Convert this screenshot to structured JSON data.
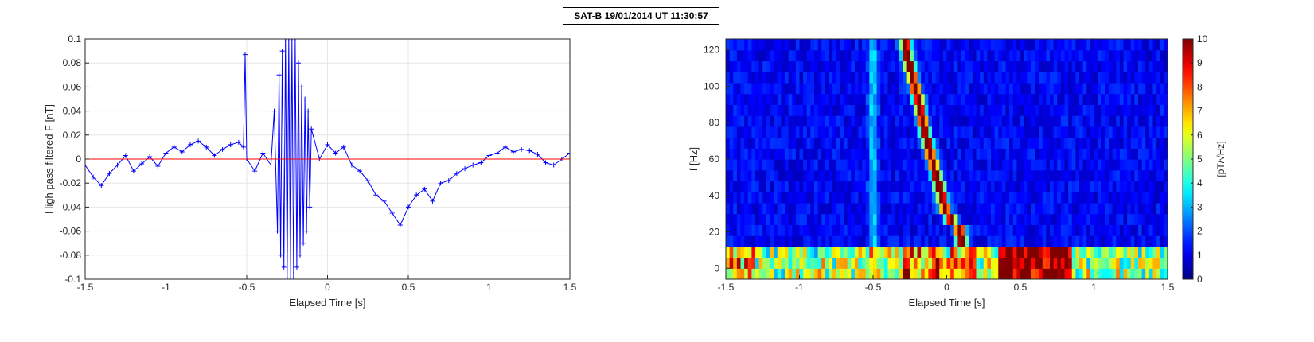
{
  "figure": {
    "title": "SAT-B 19/01/2014 UT 11:30:57"
  },
  "colors": {
    "series": "#0000ff",
    "reference": "#ff0000",
    "grid": "#e6e6e6",
    "axes": "#262626"
  },
  "chart_data": [
    {
      "type": "line",
      "xlabel": "Elapsed Time [s]",
      "ylabel": "High pass filtered F [nT]",
      "xlim": [
        -1.5,
        1.5
      ],
      "ylim": [
        -0.1,
        0.1
      ],
      "grid": true,
      "xticks": [
        -1.5,
        -1,
        -0.5,
        0,
        0.5,
        1,
        1.5
      ],
      "xtick_labels": [
        "-1.5",
        "-1",
        "-0.5",
        "0",
        "0.5",
        "1",
        "1.5"
      ],
      "yticks": [
        -0.1,
        -0.08,
        -0.06,
        -0.04,
        -0.02,
        0,
        0.02,
        0.04,
        0.06,
        0.08,
        0.1
      ],
      "ytick_labels": [
        "-0.1",
        "-0.08",
        "-0.06",
        "-0.04",
        "-0.02",
        "0",
        "0.02",
        "0.04",
        "0.06",
        "0.08",
        "0.1"
      ],
      "marker": "+",
      "series": [
        {
          "color": "#0000ff",
          "x": [
            -1.5,
            -1.45,
            -1.4,
            -1.35,
            -1.3,
            -1.25,
            -1.2,
            -1.15,
            -1.1,
            -1.05,
            -1.0,
            -0.95,
            -0.9,
            -0.85,
            -0.8,
            -0.75,
            -0.7,
            -0.65,
            -0.6,
            -0.55,
            -0.52,
            -0.51,
            -0.5,
            -0.45,
            -0.4,
            -0.35,
            -0.33,
            -0.31,
            -0.3,
            -0.29,
            -0.28,
            -0.27,
            -0.26,
            -0.25,
            -0.24,
            -0.23,
            -0.22,
            -0.21,
            -0.2,
            -0.19,
            -0.18,
            -0.17,
            -0.16,
            -0.15,
            -0.14,
            -0.13,
            -0.12,
            -0.11,
            -0.1,
            -0.05,
            0.0,
            0.05,
            0.1,
            0.15,
            0.2,
            0.25,
            0.3,
            0.35,
            0.4,
            0.45,
            0.5,
            0.55,
            0.6,
            0.65,
            0.7,
            0.75,
            0.8,
            0.85,
            0.9,
            0.95,
            1.0,
            1.05,
            1.1,
            1.15,
            1.2,
            1.25,
            1.3,
            1.35,
            1.4,
            1.45,
            1.5
          ],
          "y": [
            -0.005,
            -0.015,
            -0.022,
            -0.012,
            -0.005,
            0.003,
            -0.01,
            -0.004,
            0.002,
            -0.006,
            0.005,
            0.01,
            0.006,
            0.012,
            0.015,
            0.01,
            0.003,
            0.008,
            0.012,
            0.014,
            0.01,
            0.087,
            0.0,
            -0.01,
            0.005,
            -0.005,
            0.04,
            -0.06,
            0.07,
            -0.08,
            0.09,
            -0.09,
            0.1,
            -0.1,
            0.1,
            -0.1,
            0.1,
            -0.1,
            0.1,
            -0.09,
            0.08,
            -0.08,
            0.06,
            -0.07,
            0.05,
            -0.06,
            0.04,
            -0.04,
            0.025,
            0.0,
            0.012,
            0.005,
            0.01,
            -0.005,
            -0.01,
            -0.018,
            -0.03,
            -0.035,
            -0.045,
            -0.055,
            -0.04,
            -0.03,
            -0.025,
            -0.035,
            -0.02,
            -0.018,
            -0.012,
            -0.008,
            -0.005,
            -0.003,
            0.003,
            0.005,
            0.01,
            0.006,
            0.008,
            0.007,
            0.004,
            -0.003,
            -0.005,
            0.0,
            0.005
          ]
        },
        {
          "color": "#ff0000",
          "x": [
            -1.5,
            1.5
          ],
          "y": [
            0.0,
            0.0
          ]
        }
      ]
    },
    {
      "type": "heatmap",
      "xlabel": "Elapsed Time [s]",
      "ylabel": "f [Hz]",
      "xlim": [
        -1.5,
        1.5
      ],
      "ylim": [
        -6,
        126
      ],
      "xticks": [
        -1.5,
        -1,
        -0.5,
        0,
        0.5,
        1,
        1.5
      ],
      "xtick_labels": [
        "-1.5",
        "-1",
        "-0.5",
        "0",
        "0.5",
        "1",
        "1.5"
      ],
      "yticks": [
        0,
        20,
        40,
        60,
        80,
        100,
        120
      ],
      "ytick_labels": [
        "0",
        "20",
        "40",
        "60",
        "80",
        "100",
        "120"
      ],
      "colormap": "jet",
      "clim": [
        0,
        10
      ],
      "colorbar_ticks": [
        0,
        1,
        2,
        3,
        4,
        5,
        6,
        7,
        8,
        9,
        10
      ],
      "colorbar_tick_labels": [
        "0",
        "1",
        "2",
        "3",
        "4",
        "5",
        "6",
        "7",
        "8",
        "9",
        "10"
      ],
      "colorbar_label": "[pT/√Hz]",
      "features": [
        {
          "x": [
            -0.28,
            -0.25,
            -0.2,
            -0.15,
            -0.1,
            -0.05,
            0.0,
            0.1
          ],
          "y": [
            120,
            110,
            95,
            75,
            60,
            45,
            30,
            20
          ],
          "value": 10
        },
        {
          "x": [
            0.35,
            0.45,
            0.55,
            0.65,
            0.75,
            0.85
          ],
          "y": [
            0,
            0,
            0,
            0,
            0,
            0
          ],
          "value": 10
        },
        {
          "x": [
            -0.5
          ],
          "y": [
            60
          ],
          "value": 3
        }
      ]
    }
  ]
}
